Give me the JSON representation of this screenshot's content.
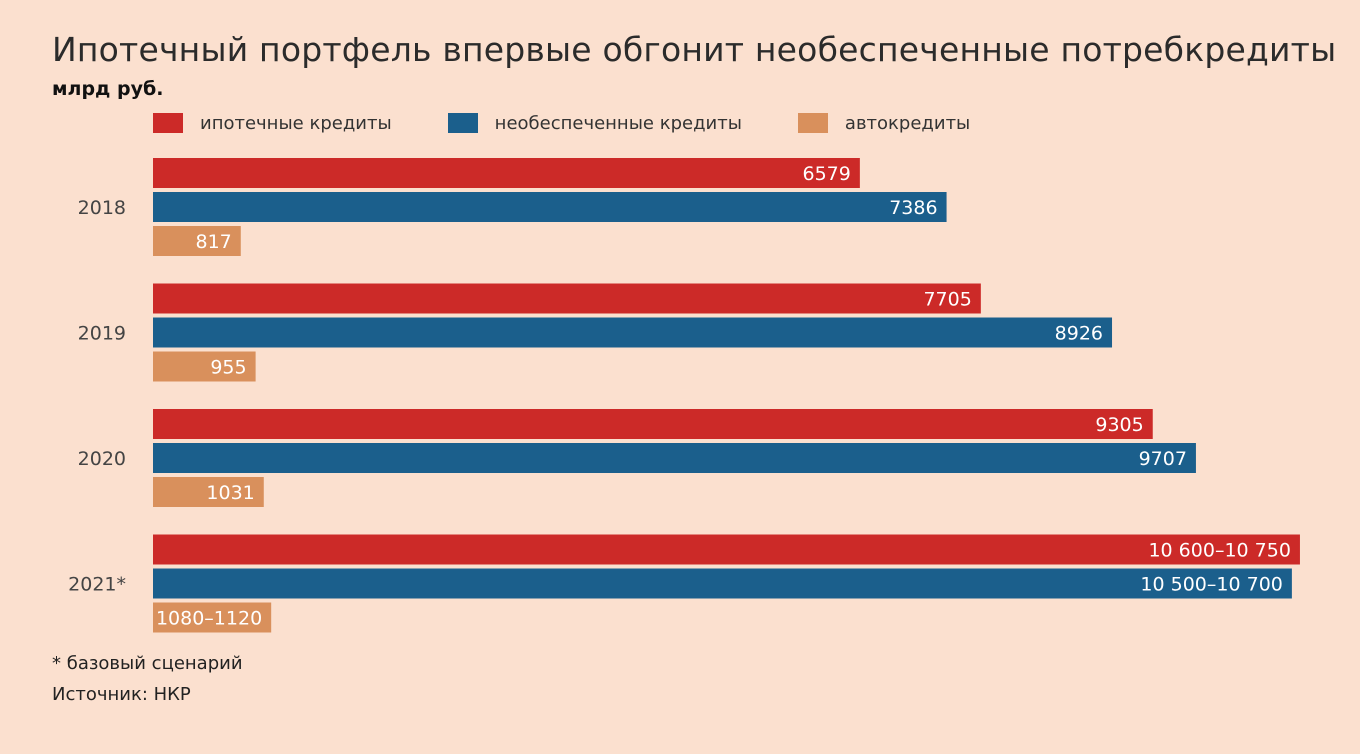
{
  "chart_data": {
    "type": "bar",
    "orientation": "horizontal",
    "title": "Ипотечный портфель впервые обгонит необеспеченные потребкредиты",
    "subtitle": "млрд руб.",
    "categories": [
      "2018",
      "2019",
      "2020",
      "2021*"
    ],
    "series": [
      {
        "name": "ипотечные кредиты",
        "color": "#cc2a28",
        "values": [
          6579,
          7705,
          9305,
          10675
        ],
        "labels": [
          "6579",
          "7705",
          "9305",
          "10 600–10 750"
        ]
      },
      {
        "name": "необеспеченные кредиты",
        "color": "#1b5f8c",
        "values": [
          7386,
          8926,
          9707,
          10600
        ],
        "labels": [
          "7386",
          "8926",
          "9707",
          "10 500–10 700"
        ]
      },
      {
        "name": "автокредиты",
        "color": "#d9905c",
        "values": [
          817,
          955,
          1031,
          1100
        ],
        "labels": [
          "817",
          "955",
          "1031",
          "1080–1120"
        ]
      }
    ],
    "xlim": [
      0,
      10750
    ],
    "grid": false,
    "legend_position": "top"
  },
  "footnote": "* базовый сценарий",
  "source": "Источник: НКР"
}
